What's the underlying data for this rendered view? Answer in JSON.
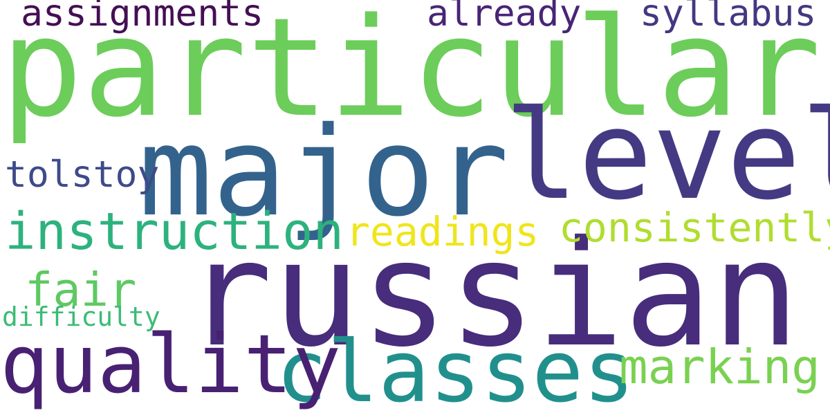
{
  "cloud": {
    "background": "#ffffff",
    "words": [
      {
        "id": "particular",
        "text": "particular",
        "color": "#6ccd5a"
      },
      {
        "id": "russian",
        "text": "russian",
        "color": "#472d7b"
      },
      {
        "id": "major",
        "text": "major",
        "color": "#33638d"
      },
      {
        "id": "level",
        "text": "level",
        "color": "#443a83"
      },
      {
        "id": "classes",
        "text": "classes",
        "color": "#21908d"
      },
      {
        "id": "quality",
        "text": "quality",
        "color": "#482173"
      },
      {
        "id": "instruction",
        "text": "instruction",
        "color": "#2db27d"
      },
      {
        "id": "marking",
        "text": "marking",
        "color": "#7ad151"
      },
      {
        "id": "consistently",
        "text": "consistently",
        "color": "#b0dd2f"
      },
      {
        "id": "readings",
        "text": "readings",
        "color": "#efe51c"
      },
      {
        "id": "assignments",
        "text": "assignments",
        "color": "#440f54"
      },
      {
        "id": "already",
        "text": "already",
        "color": "#482576"
      },
      {
        "id": "syllabus",
        "text": "syllabus",
        "color": "#453781"
      },
      {
        "id": "tolstoy",
        "text": "tolstoy",
        "color": "#3e4a89"
      },
      {
        "id": "fair",
        "text": "fair",
        "color": "#5ec962"
      },
      {
        "id": "difficulty",
        "text": "difficulty",
        "color": "#3bbb75"
      }
    ]
  }
}
